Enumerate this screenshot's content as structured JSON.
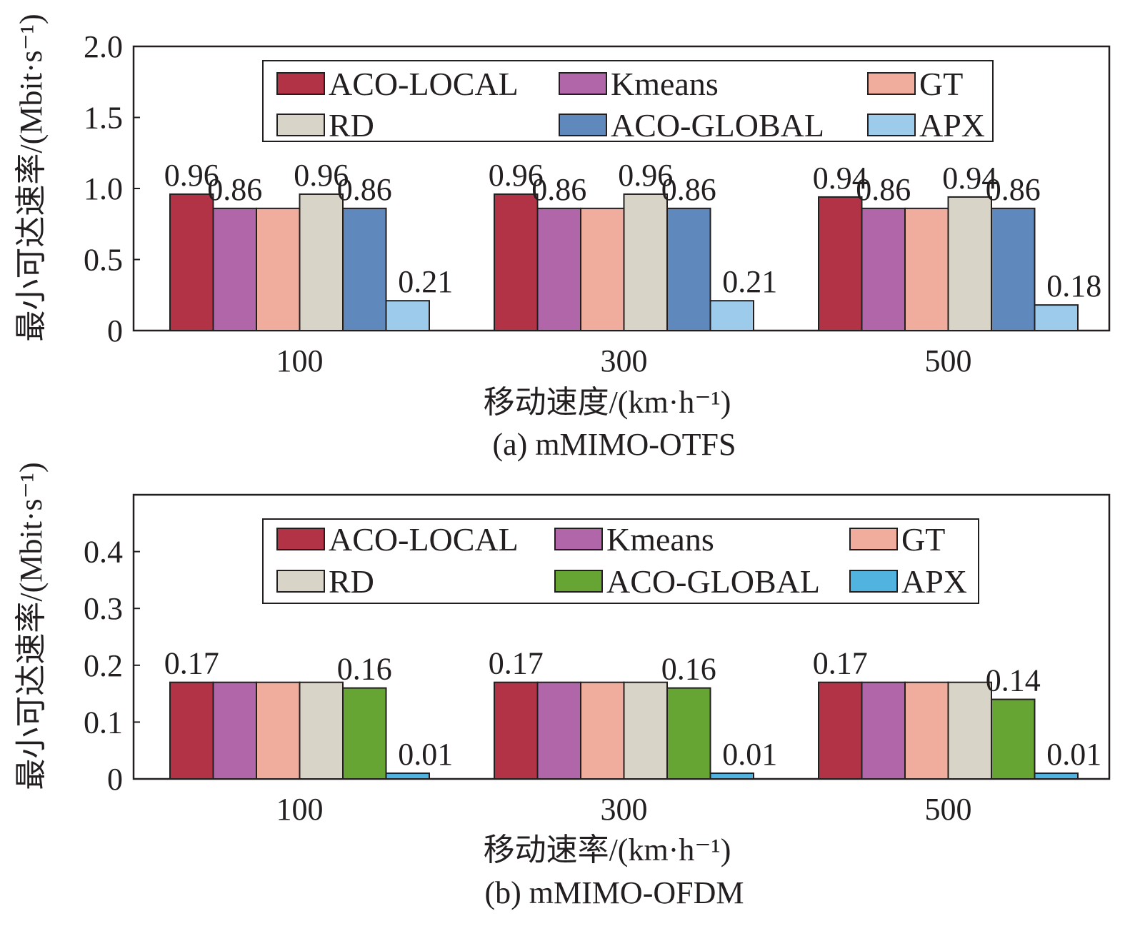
{
  "chart_data": [
    {
      "type": "bar",
      "caption": "(a) mMIMO-OTFS",
      "xlabel": "移动速度/(km·h⁻¹)",
      "ylabel": "最小可达速率/(Mbit·s⁻¹)",
      "categories": [
        "100",
        "300",
        "500"
      ],
      "ylim": [
        0,
        2.0
      ],
      "yticks": [
        "0",
        "0.5",
        "1.0",
        "1.5",
        "2.0"
      ],
      "ytick_values": [
        0,
        0.5,
        1.0,
        1.5,
        2.0
      ],
      "legend_position": "top",
      "series": [
        {
          "name": "ACO-LOCAL",
          "color": "#b23346",
          "values": [
            0.96,
            0.96,
            0.94
          ],
          "labels": [
            "0.96",
            "0.96",
            "0.94"
          ]
        },
        {
          "name": "Kmeans",
          "color": "#b066a8",
          "values": [
            0.86,
            0.86,
            0.86
          ],
          "labels": [
            "0.86",
            "0.86",
            "0.86"
          ]
        },
        {
          "name": "GT",
          "color": "#f0ad9d",
          "values": [
            0.86,
            0.86,
            0.86
          ],
          "labels": [
            "",
            "",
            ""
          ]
        },
        {
          "name": "RD",
          "color": "#d9d4c8",
          "values": [
            0.96,
            0.96,
            0.94
          ],
          "labels": [
            "0.96",
            "0.96",
            "0.94"
          ]
        },
        {
          "name": "ACO-GLOBAL",
          "color": "#5f88bd",
          "values": [
            0.86,
            0.86,
            0.86
          ],
          "labels": [
            "0.86",
            "0.86",
            "0.86"
          ]
        },
        {
          "name": "APX",
          "color": "#9dcbec",
          "values": [
            0.21,
            0.21,
            0.18
          ],
          "labels": [
            "0.21",
            "0.21",
            "0.18"
          ]
        }
      ]
    },
    {
      "type": "bar",
      "caption": "(b) mMIMO-OFDM",
      "xlabel": "移动速率/(km·h⁻¹)",
      "ylabel": "最小可达速率/(Mbit·s⁻¹)",
      "categories": [
        "100",
        "300",
        "500"
      ],
      "ylim": [
        0,
        0.5
      ],
      "yticks": [
        "0",
        "0.1",
        "0.2",
        "0.3",
        "0.4"
      ],
      "ytick_values": [
        0,
        0.1,
        0.2,
        0.3,
        0.4
      ],
      "legend_position": "top",
      "series": [
        {
          "name": "ACO-LOCAL",
          "color": "#b23346",
          "values": [
            0.17,
            0.17,
            0.17
          ],
          "labels": [
            "0.17",
            "0.17",
            "0.17"
          ]
        },
        {
          "name": "Kmeans",
          "color": "#b066a8",
          "values": [
            0.17,
            0.17,
            0.17
          ],
          "labels": [
            "",
            "",
            ""
          ]
        },
        {
          "name": "GT",
          "color": "#f0ad9d",
          "values": [
            0.17,
            0.17,
            0.17
          ],
          "labels": [
            "",
            "",
            ""
          ]
        },
        {
          "name": "RD",
          "color": "#d9d4c8",
          "values": [
            0.17,
            0.17,
            0.17
          ],
          "labels": [
            "",
            "",
            ""
          ]
        },
        {
          "name": "ACO-GLOBAL",
          "color": "#66a534",
          "values": [
            0.16,
            0.16,
            0.14
          ],
          "labels": [
            "0.16",
            "0.16",
            "0.14"
          ]
        },
        {
          "name": "APX",
          "color": "#50b3e0",
          "values": [
            0.01,
            0.01,
            0.01
          ],
          "labels": [
            "0.01",
            "0.01",
            "0.01"
          ]
        }
      ]
    }
  ]
}
